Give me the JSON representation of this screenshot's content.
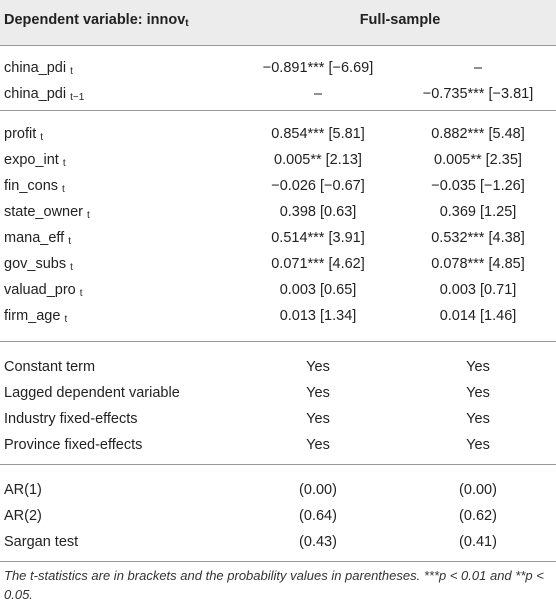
{
  "header": {
    "dep_var": "Dependent variable: innov",
    "dep_var_sub": "t",
    "group": "Full-sample"
  },
  "sections": [
    {
      "rows": [
        {
          "name": "china_pdi",
          "sub": "t",
          "cells": [
            "−0.891*** [−6.69]",
            "–"
          ]
        },
        {
          "name": "china_pdi",
          "sub": "t−1",
          "cells": [
            "–",
            "−0.735*** [−3.81]"
          ]
        }
      ]
    },
    {
      "rows": [
        {
          "name": "profit",
          "sub": "t",
          "cells": [
            "0.854*** [5.81]",
            "0.882*** [5.48]"
          ]
        },
        {
          "name": "expo_int",
          "sub": "t",
          "cells": [
            "0.005** [2.13]",
            "0.005** [2.35]"
          ]
        },
        {
          "name": "fin_cons",
          "sub": "t",
          "cells": [
            "−0.026 [−0.67]",
            "−0.035 [−1.26]"
          ]
        },
        {
          "name": "state_owner",
          "sub": "t",
          "cells": [
            "0.398 [0.63]",
            "0.369 [1.25]"
          ]
        },
        {
          "name": "mana_eff",
          "sub": "t",
          "cells": [
            "0.514*** [3.91]",
            "0.532*** [4.38]"
          ]
        },
        {
          "name": "gov_subs",
          "sub": "t",
          "cells": [
            "0.071*** [4.62]",
            "0.078*** [4.85]"
          ]
        },
        {
          "name": "valuad_pro",
          "sub": "t",
          "cells": [
            "0.003 [0.65]",
            "0.003 [0.71]"
          ]
        },
        {
          "name": "firm_age",
          "sub": "t",
          "cells": [
            "0.013 [1.34]",
            "0.014 [1.46]"
          ]
        }
      ]
    },
    {
      "rows": [
        {
          "name": "Constant term",
          "cells": [
            "Yes",
            "Yes"
          ]
        },
        {
          "name": "Lagged dependent variable",
          "cells": [
            "Yes",
            "Yes"
          ]
        },
        {
          "name": "Industry fixed-effects",
          "cells": [
            "Yes",
            "Yes"
          ]
        },
        {
          "name": "Province fixed-effects",
          "cells": [
            "Yes",
            "Yes"
          ]
        }
      ]
    },
    {
      "rows": [
        {
          "name": "AR(1)",
          "cells": [
            "(0.00)",
            "(0.00)"
          ]
        },
        {
          "name": "AR(2)",
          "cells": [
            "(0.64)",
            "(0.62)"
          ]
        },
        {
          "name": "Sargan test",
          "cells": [
            "(0.43)",
            "(0.41)"
          ]
        }
      ]
    }
  ],
  "note": "The t-statistics are in brackets and the probability values in parentheses. ***p < 0.01 and **p < 0.05."
}
